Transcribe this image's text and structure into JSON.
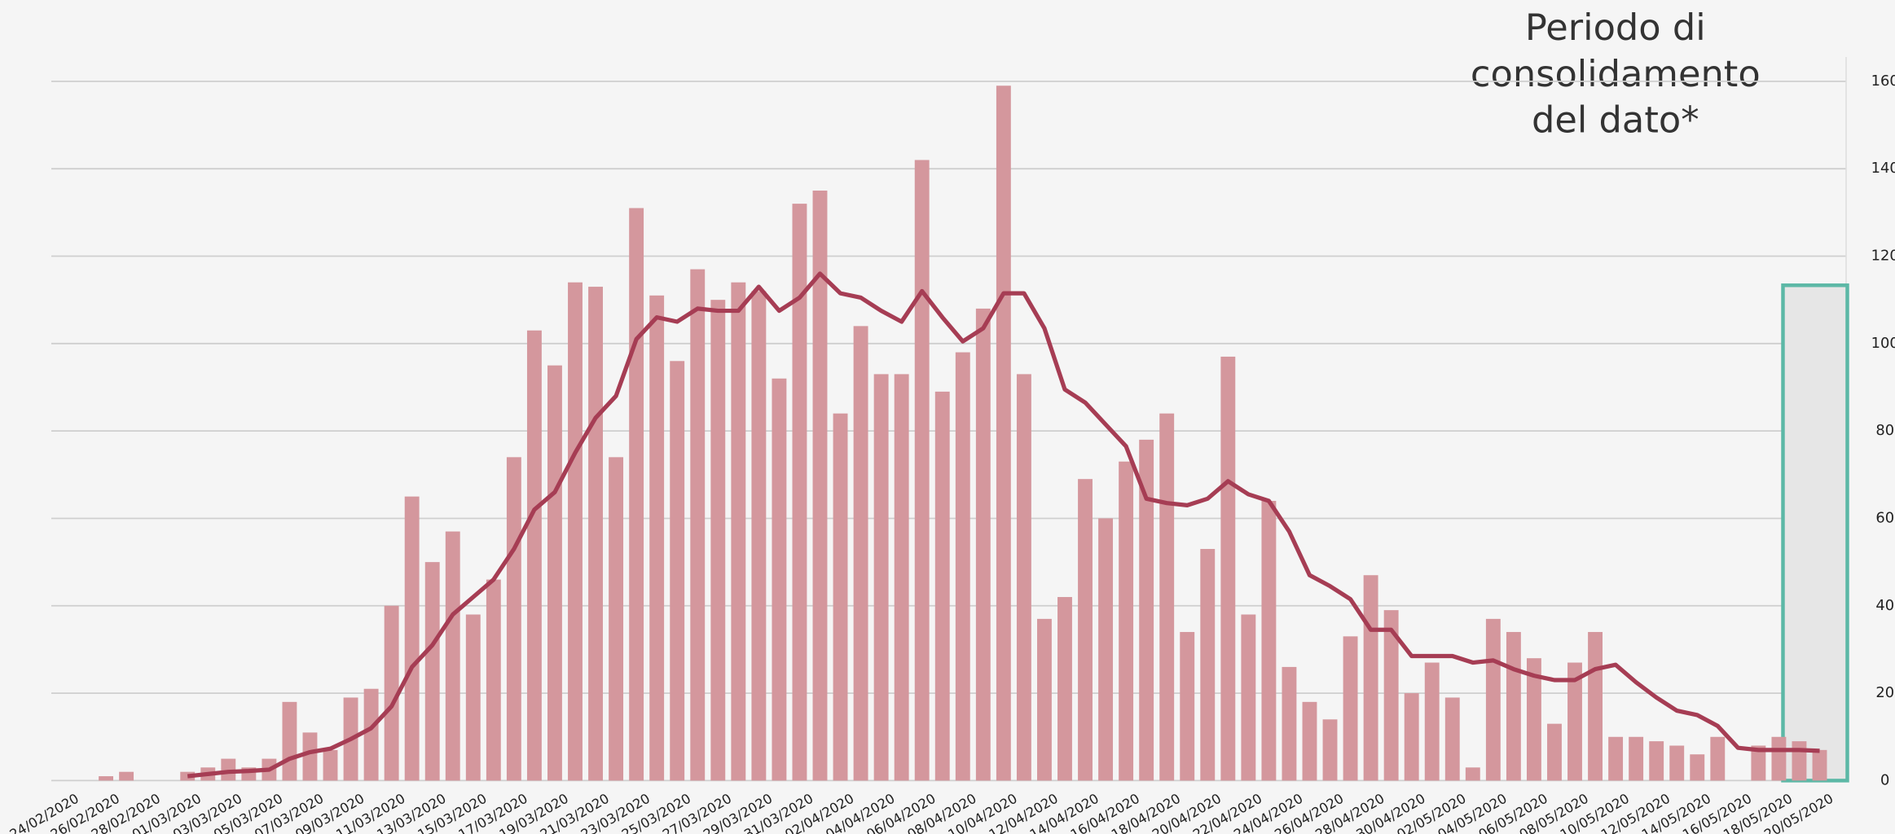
{
  "chart_data": {
    "type": "bar",
    "categories": [
      "24/02/2020",
      null,
      "26/02/2020",
      null,
      "28/02/2020",
      null,
      "01/03/2020",
      null,
      "03/03/2020",
      null,
      "05/03/2020",
      null,
      "07/03/2020",
      null,
      "09/03/2020",
      null,
      "11/03/2020",
      null,
      "13/03/2020",
      null,
      "15/03/2020",
      null,
      "17/03/2020",
      null,
      "19/03/2020",
      null,
      "21/03/2020",
      null,
      "23/03/2020",
      null,
      "25/03/2020",
      null,
      "27/03/2020",
      null,
      "29/03/2020",
      null,
      "31/03/2020",
      null,
      "02/04/2020",
      null,
      "04/04/2020",
      null,
      "06/04/2020",
      null,
      "08/04/2020",
      null,
      "10/04/2020",
      null,
      "12/04/2020",
      null,
      "14/04/2020",
      null,
      "16/04/2020",
      null,
      "18/04/2020",
      null,
      "20/04/2020",
      null,
      "22/04/2020",
      null,
      "24/04/2020",
      null,
      "26/04/2020",
      null,
      "28/04/2020",
      null,
      "30/04/2020",
      null,
      "02/05/2020",
      null,
      "04/05/2020",
      null,
      "06/05/2020",
      null,
      "08/05/2020",
      null,
      "10/05/2020",
      null,
      "12/05/2020",
      null,
      "14/05/2020",
      null,
      "16/05/2020",
      null,
      "18/05/2020",
      null,
      "20/05/2020"
    ],
    "series": [
      {
        "type": "bar",
        "color": "#d4979d",
        "values": [
          0,
          0,
          1,
          2,
          0,
          0,
          2,
          3,
          5,
          3,
          5,
          18,
          11,
          7,
          19,
          21,
          40,
          65,
          50,
          57,
          38,
          46,
          74,
          103,
          95,
          114,
          113,
          74,
          131,
          111,
          96,
          117,
          110,
          114,
          112,
          92,
          132,
          135,
          84,
          104,
          93,
          93,
          142,
          89,
          98,
          108,
          159,
          93,
          37,
          42,
          69,
          60,
          73,
          78,
          84,
          34,
          53,
          97,
          38,
          64,
          26,
          18,
          14,
          33,
          47,
          39,
          20,
          27,
          19,
          3,
          37,
          34,
          28,
          13,
          27,
          34,
          10,
          10,
          9,
          8,
          6,
          10,
          0,
          8,
          10,
          9,
          7
        ]
      },
      {
        "type": "line",
        "color": "#a63d54",
        "values": [
          null,
          null,
          null,
          null,
          null,
          null,
          1,
          1.5,
          2,
          2.2,
          2.5,
          5,
          6.5,
          7.3,
          9.5,
          12,
          17,
          26,
          31,
          38,
          42,
          46,
          53,
          62,
          66,
          75,
          83,
          88,
          101,
          106,
          105,
          108,
          107.5,
          107.5,
          113,
          107.5,
          110.5,
          116,
          111.5,
          110.5,
          107.5,
          105,
          112,
          106,
          100.5,
          103.5,
          111.5,
          111.5,
          103.5,
          89.5,
          86.5,
          81.5,
          76.5,
          64.5,
          63.5,
          63,
          64.5,
          68.5,
          65.5,
          64,
          57,
          47,
          44.5,
          41.5,
          34.5,
          34.5,
          28.5,
          28.5,
          28.5,
          27,
          27.5,
          25.5,
          24,
          23,
          23,
          25.5,
          26.5,
          22.5,
          19,
          16,
          15,
          12.5,
          7.5,
          7,
          7,
          7,
          6.8
        ]
      }
    ],
    "ylim": [
      0,
      160
    ],
    "yticks": [
      0,
      20,
      40,
      60,
      80,
      100,
      120,
      140,
      160
    ],
    "grid": true,
    "y_axis_side": "right",
    "annotation": [
      "Periodo di",
      "consolidamento",
      "del dato*"
    ]
  }
}
